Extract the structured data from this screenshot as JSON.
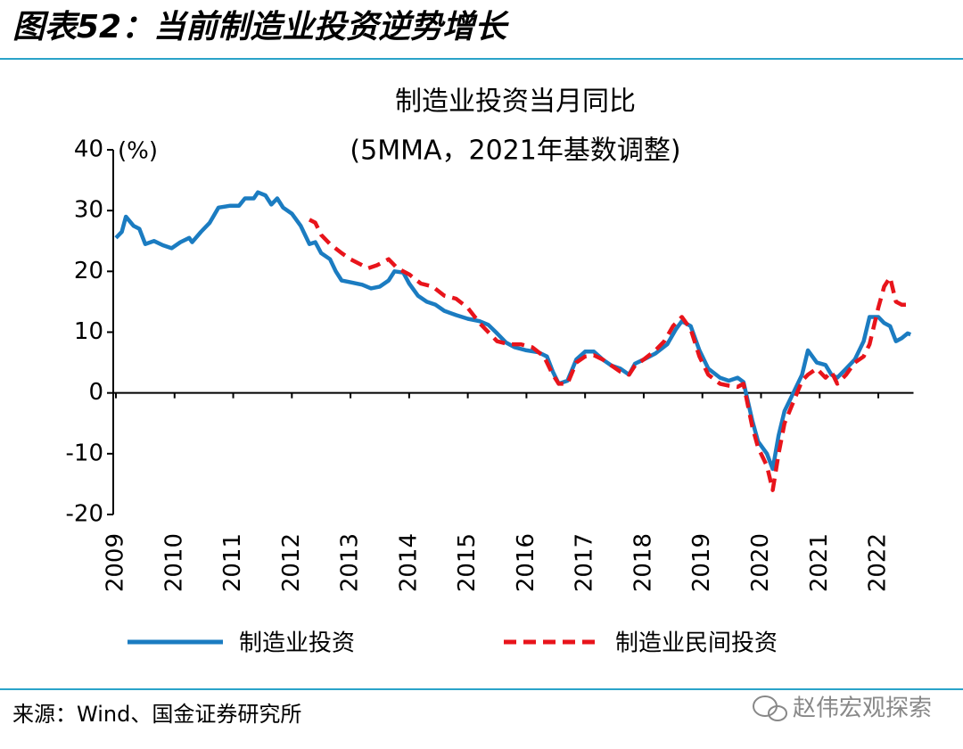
{
  "header": {
    "title": "图表52：当前制造业投资逆势增长"
  },
  "chart_data": {
    "type": "line",
    "title": "制造业投资当月同比",
    "subtitle": "(5MMA，2021年基数调整)",
    "y_unit": "(%)",
    "xlim": [
      2009,
      2022.6
    ],
    "xticks": [
      2009,
      2010,
      2011,
      2012,
      2013,
      2014,
      2015,
      2016,
      2017,
      2018,
      2019,
      2020,
      2021,
      2022
    ],
    "ylim": [
      -20,
      40
    ],
    "yticks": [
      -20,
      -10,
      0,
      10,
      20,
      30,
      40
    ],
    "legend": "bottom",
    "series": [
      {
        "name": "制造业投资",
        "color": "#1b7cc1",
        "style": "solid",
        "x": [
          2009.0,
          2009.1,
          2009.17,
          2009.3,
          2009.4,
          2009.5,
          2009.65,
          2009.8,
          2009.95,
          2010.1,
          2010.25,
          2010.3,
          2010.45,
          2010.6,
          2010.75,
          2010.95,
          2011.1,
          2011.2,
          2011.35,
          2011.42,
          2011.55,
          2011.65,
          2011.75,
          2011.85,
          2012.0,
          2012.15,
          2012.3,
          2012.4,
          2012.5,
          2012.65,
          2012.75,
          2012.85,
          2013.0,
          2013.2,
          2013.35,
          2013.5,
          2013.65,
          2013.75,
          2013.9,
          2014.0,
          2014.15,
          2014.3,
          2014.45,
          2014.6,
          2014.8,
          2015.0,
          2015.2,
          2015.35,
          2015.5,
          2015.65,
          2015.8,
          2016.0,
          2016.2,
          2016.35,
          2016.45,
          2016.55,
          2016.7,
          2016.85,
          2017.0,
          2017.15,
          2017.3,
          2017.45,
          2017.6,
          2017.75,
          2017.85,
          2018.0,
          2018.2,
          2018.4,
          2018.55,
          2018.65,
          2018.8,
          2018.95,
          2019.1,
          2019.3,
          2019.45,
          2019.6,
          2019.7,
          2019.85,
          2019.95,
          2020.1,
          2020.2,
          2020.3,
          2020.4,
          2020.55,
          2020.7,
          2020.8,
          2020.95,
          2021.1,
          2021.2,
          2021.3,
          2021.45,
          2021.6,
          2021.75,
          2021.85,
          2022.0,
          2022.1,
          2022.2,
          2022.3,
          2022.4,
          2022.5,
          2022.55
        ],
        "values": [
          25.5,
          26.5,
          29,
          27.5,
          27,
          24.5,
          25,
          24.3,
          23.8,
          24.8,
          25.5,
          24.8,
          26.5,
          28,
          30.5,
          30.8,
          30.8,
          32,
          32,
          33,
          32.5,
          31,
          32,
          30.5,
          29.5,
          27.5,
          24.5,
          24.8,
          23,
          22,
          20,
          18.5,
          18.2,
          17.8,
          17.2,
          17.5,
          18.5,
          20,
          19.8,
          18,
          16,
          15,
          14.5,
          13.5,
          12.8,
          12.2,
          11.8,
          11.2,
          9.8,
          8.3,
          7.5,
          7,
          6.7,
          6,
          3.5,
          1.5,
          2,
          5.5,
          6.8,
          6.8,
          5.5,
          4.5,
          4,
          3,
          4.8,
          5.5,
          6.5,
          8,
          10.5,
          11.8,
          11,
          7,
          4,
          2.5,
          2,
          2.5,
          1.8,
          -4.5,
          -8,
          -10,
          -12.5,
          -7,
          -3,
          0,
          3,
          7,
          5,
          4.6,
          3,
          2.5,
          4,
          5.5,
          8.5,
          12.5,
          12.5,
          11.5,
          11,
          8.5,
          9,
          9.8,
          9.6
        ]
      },
      {
        "name": "制造业民间投资",
        "color": "#e8141b",
        "style": "dashed",
        "x": [
          2012.3,
          2012.4,
          2012.5,
          2012.65,
          2012.85,
          2013.0,
          2013.2,
          2013.3,
          2013.45,
          2013.55,
          2013.65,
          2013.8,
          2014.0,
          2014.2,
          2014.4,
          2014.6,
          2014.8,
          2015.0,
          2015.2,
          2015.4,
          2015.5,
          2015.7,
          2015.9,
          2016.1,
          2016.3,
          2016.45,
          2016.55,
          2016.7,
          2016.85,
          2017.0,
          2017.15,
          2017.3,
          2017.45,
          2017.6,
          2017.75,
          2017.85,
          2018.0,
          2018.2,
          2018.35,
          2018.5,
          2018.65,
          2018.8,
          2018.95,
          2019.1,
          2019.3,
          2019.45,
          2019.6,
          2019.7,
          2019.85,
          2019.95,
          2020.1,
          2020.2,
          2020.3,
          2020.4,
          2020.55,
          2020.7,
          2020.8,
          2020.95,
          2021.1,
          2021.2,
          2021.3,
          2021.45,
          2021.6,
          2021.75,
          2021.85,
          2022.0,
          2022.1,
          2022.2,
          2022.3,
          2022.4,
          2022.5
        ],
        "values": [
          28.5,
          28,
          26,
          24.5,
          23,
          22,
          21,
          20.5,
          21,
          21.5,
          22,
          20.5,
          19.5,
          18,
          17.5,
          16,
          15.5,
          14,
          11.5,
          9.5,
          8.5,
          8,
          8,
          7.5,
          6,
          3,
          1.5,
          1.5,
          5,
          6,
          6.2,
          5.5,
          4.5,
          3.5,
          3,
          4.5,
          5.5,
          7,
          8.5,
          11,
          12.5,
          10.5,
          6,
          3,
          1.5,
          1.2,
          1,
          1.5,
          -5.5,
          -9,
          -12,
          -16,
          -10,
          -5,
          -1.5,
          2,
          3,
          4,
          2.5,
          3.5,
          1.5,
          3,
          5,
          6,
          8,
          14,
          17.5,
          19,
          15,
          14.5,
          14.5
        ]
      }
    ]
  },
  "footer": {
    "source": "来源：Wind、国金证券研究所",
    "watermark": "赵伟宏观探索"
  }
}
